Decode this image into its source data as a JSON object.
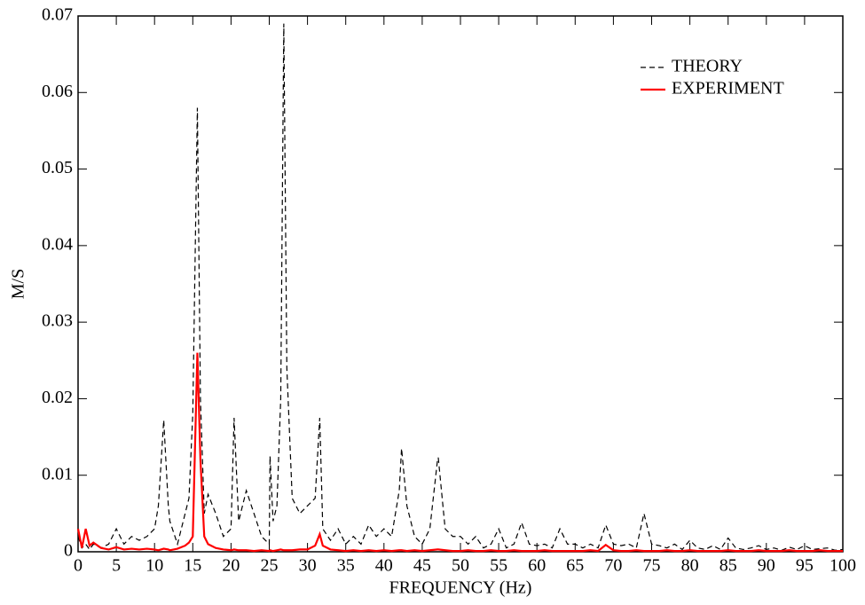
{
  "chart_data": {
    "type": "line",
    "x_label": "FREQUENCY (Hz)",
    "y_label": "M/S",
    "x": [
      0,
      0.5,
      1,
      1.5,
      2,
      3,
      4,
      5,
      6,
      7,
      8,
      9,
      10,
      10.5,
      11.2,
      11.8,
      12,
      13,
      14,
      14.5,
      15,
      15.6,
      16,
      16.5,
      17,
      18,
      19,
      20,
      20.4,
      21,
      22,
      23,
      24,
      25,
      25.1,
      25.5,
      26,
      26.5,
      26.9,
      27.3,
      28,
      29,
      30,
      31,
      31.6,
      32,
      33,
      34,
      35,
      36,
      37,
      38,
      39,
      40,
      41,
      42,
      42.3,
      43,
      44,
      45,
      46,
      47,
      47.1,
      48,
      49,
      50,
      51,
      52,
      53,
      54,
      55,
      56,
      57,
      58,
      59,
      60,
      61,
      62,
      63,
      64,
      65,
      66,
      67,
      68,
      69,
      70,
      71,
      72,
      73,
      74,
      75,
      76,
      77,
      78,
      79,
      80,
      81,
      82,
      83,
      84,
      85,
      86,
      87,
      88,
      89,
      90,
      91,
      92,
      93,
      94,
      95,
      96,
      97,
      98,
      99,
      100
    ],
    "series": [
      {
        "name": "THEORY",
        "color": "#000000",
        "dashed": true,
        "values": [
          0.002,
          0.0005,
          0.001,
          0.0003,
          0.001,
          0.0005,
          0.001,
          0.003,
          0.001,
          0.002,
          0.0015,
          0.002,
          0.003,
          0.006,
          0.0172,
          0.006,
          0.004,
          0.001,
          0.005,
          0.007,
          0.018,
          0.058,
          0.02,
          0.005,
          0.0075,
          0.005,
          0.002,
          0.003,
          0.0175,
          0.004,
          0.008,
          0.005,
          0.002,
          0.001,
          0.0125,
          0.004,
          0.006,
          0.02,
          0.069,
          0.024,
          0.007,
          0.005,
          0.006,
          0.007,
          0.0175,
          0.003,
          0.0015,
          0.003,
          0.001,
          0.002,
          0.001,
          0.0035,
          0.002,
          0.003,
          0.002,
          0.008,
          0.0135,
          0.006,
          0.002,
          0.001,
          0.003,
          0.012,
          0.0123,
          0.003,
          0.002,
          0.002,
          0.001,
          0.002,
          0.0005,
          0.001,
          0.003,
          0.0005,
          0.001,
          0.0038,
          0.001,
          0.0008,
          0.001,
          0.0005,
          0.003,
          0.001,
          0.001,
          0.0005,
          0.001,
          0.0005,
          0.0035,
          0.001,
          0.0008,
          0.001,
          0.0005,
          0.005,
          0.001,
          0.0008,
          0.0005,
          0.001,
          0.0003,
          0.0015,
          0.0005,
          0.0003,
          0.0008,
          0.0003,
          0.0018,
          0.0005,
          0.0003,
          0.0005,
          0.0008,
          0.0003,
          0.0005,
          0.0002,
          0.0006,
          0.0003,
          0.0008,
          0.0003,
          0.0004,
          0.0005,
          0.0002,
          0.0003
        ]
      },
      {
        "name": "EXPERIMENT",
        "color": "#ff0000",
        "dashed": false,
        "values": [
          0.003,
          0.0005,
          0.003,
          0.0008,
          0.0012,
          0.0005,
          0.0003,
          0.0006,
          0.0003,
          0.0004,
          0.0003,
          0.0004,
          0.0003,
          0.0002,
          0.0004,
          0.0003,
          0.0002,
          0.0004,
          0.0008,
          0.0012,
          0.002,
          0.026,
          0.012,
          0.002,
          0.001,
          0.0005,
          0.0003,
          0.0002,
          0.0003,
          0.0002,
          0.0002,
          0.0001,
          0.0002,
          0.0001,
          0.0002,
          0.0001,
          0.0002,
          0.0003,
          0.0002,
          0.0002,
          0.0002,
          0.0003,
          0.0003,
          0.0008,
          0.0023,
          0.0008,
          0.0003,
          0.0002,
          0.0001,
          0.0002,
          0.0001,
          0.0002,
          0.0001,
          0.0002,
          0.0001,
          0.0002,
          0.0002,
          0.0001,
          0.0002,
          0.0001,
          0.0002,
          0.0003,
          0.0003,
          0.0002,
          0.0001,
          0.0001,
          0.0002,
          0.0001,
          0.0001,
          0.0002,
          0.0001,
          0.0001,
          0.0002,
          0.0001,
          0.0001,
          0.0001,
          0.0002,
          0.0001,
          0.0001,
          0.0001,
          0.0001,
          0.0001,
          0.0002,
          0.0001,
          0.0009,
          0.0002,
          0.0001,
          0.0001,
          0.0002,
          0.0001,
          0.0001,
          0.0001,
          0.0002,
          0.0001,
          0.0001,
          0.0002,
          0.0001,
          0.0001,
          0.0001,
          0.0001,
          0.0002,
          0.0001,
          0.0001,
          0.0001,
          0.0002,
          0.0001,
          0.0001,
          0.0001,
          0.0002,
          0.0001,
          0.0001,
          0.0001,
          0.0002,
          0.0001,
          0.0001,
          0.0001
        ]
      }
    ],
    "xlim": [
      0,
      100
    ],
    "xticks": [
      0,
      5,
      10,
      15,
      20,
      25,
      30,
      35,
      40,
      45,
      50,
      55,
      60,
      65,
      70,
      75,
      80,
      85,
      90,
      95,
      100
    ],
    "ylim": [
      0,
      0.07
    ],
    "yticks": [
      0,
      0.01,
      0.02,
      0.03,
      0.04,
      0.05,
      0.06,
      0.07
    ],
    "grid": false,
    "legend": "upper right"
  }
}
